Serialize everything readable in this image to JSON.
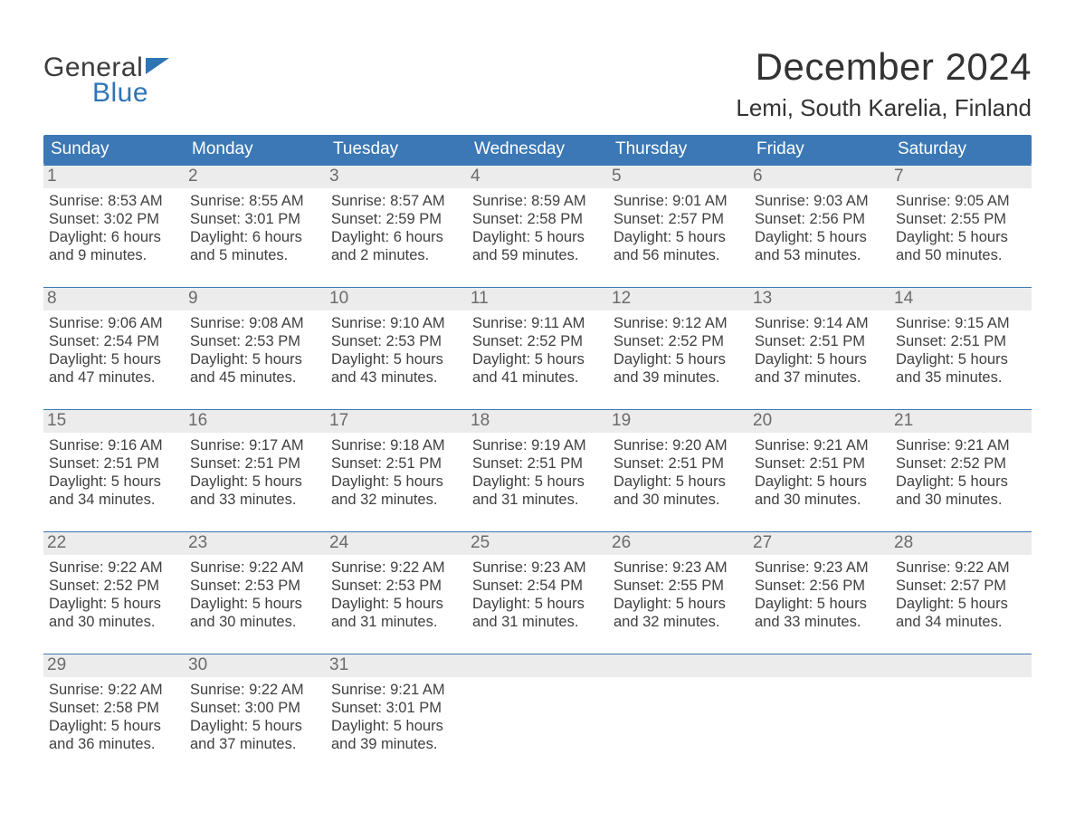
{
  "brand": {
    "word1": "General",
    "word2": "Blue"
  },
  "title": "December 2024",
  "location": "Lemi, South Karelia, Finland",
  "colors": {
    "header_bg": "#3b78b5",
    "header_text": "#ffffff",
    "week_border": "#3b78b5",
    "daynum_bg": "#ececec",
    "daynum_text": "#6b6b6b",
    "body_text": "#404040",
    "logo_blue": "#2e75b6",
    "page_bg": "#ffffff"
  },
  "typography": {
    "title_fontsize": 42,
    "location_fontsize": 26,
    "dow_fontsize": 19,
    "daynum_fontsize": 19,
    "body_fontsize": 16.5,
    "font_family": "Arial"
  },
  "days_of_week": [
    "Sunday",
    "Monday",
    "Tuesday",
    "Wednesday",
    "Thursday",
    "Friday",
    "Saturday"
  ],
  "weeks": [
    [
      {
        "n": "1",
        "sunrise": "Sunrise: 8:53 AM",
        "sunset": "Sunset: 3:02 PM",
        "daylight1": "Daylight: 6 hours",
        "daylight2": "and 9 minutes."
      },
      {
        "n": "2",
        "sunrise": "Sunrise: 8:55 AM",
        "sunset": "Sunset: 3:01 PM",
        "daylight1": "Daylight: 6 hours",
        "daylight2": "and 5 minutes."
      },
      {
        "n": "3",
        "sunrise": "Sunrise: 8:57 AM",
        "sunset": "Sunset: 2:59 PM",
        "daylight1": "Daylight: 6 hours",
        "daylight2": "and 2 minutes."
      },
      {
        "n": "4",
        "sunrise": "Sunrise: 8:59 AM",
        "sunset": "Sunset: 2:58 PM",
        "daylight1": "Daylight: 5 hours",
        "daylight2": "and 59 minutes."
      },
      {
        "n": "5",
        "sunrise": "Sunrise: 9:01 AM",
        "sunset": "Sunset: 2:57 PM",
        "daylight1": "Daylight: 5 hours",
        "daylight2": "and 56 minutes."
      },
      {
        "n": "6",
        "sunrise": "Sunrise: 9:03 AM",
        "sunset": "Sunset: 2:56 PM",
        "daylight1": "Daylight: 5 hours",
        "daylight2": "and 53 minutes."
      },
      {
        "n": "7",
        "sunrise": "Sunrise: 9:05 AM",
        "sunset": "Sunset: 2:55 PM",
        "daylight1": "Daylight: 5 hours",
        "daylight2": "and 50 minutes."
      }
    ],
    [
      {
        "n": "8",
        "sunrise": "Sunrise: 9:06 AM",
        "sunset": "Sunset: 2:54 PM",
        "daylight1": "Daylight: 5 hours",
        "daylight2": "and 47 minutes."
      },
      {
        "n": "9",
        "sunrise": "Sunrise: 9:08 AM",
        "sunset": "Sunset: 2:53 PM",
        "daylight1": "Daylight: 5 hours",
        "daylight2": "and 45 minutes."
      },
      {
        "n": "10",
        "sunrise": "Sunrise: 9:10 AM",
        "sunset": "Sunset: 2:53 PM",
        "daylight1": "Daylight: 5 hours",
        "daylight2": "and 43 minutes."
      },
      {
        "n": "11",
        "sunrise": "Sunrise: 9:11 AM",
        "sunset": "Sunset: 2:52 PM",
        "daylight1": "Daylight: 5 hours",
        "daylight2": "and 41 minutes."
      },
      {
        "n": "12",
        "sunrise": "Sunrise: 9:12 AM",
        "sunset": "Sunset: 2:52 PM",
        "daylight1": "Daylight: 5 hours",
        "daylight2": "and 39 minutes."
      },
      {
        "n": "13",
        "sunrise": "Sunrise: 9:14 AM",
        "sunset": "Sunset: 2:51 PM",
        "daylight1": "Daylight: 5 hours",
        "daylight2": "and 37 minutes."
      },
      {
        "n": "14",
        "sunrise": "Sunrise: 9:15 AM",
        "sunset": "Sunset: 2:51 PM",
        "daylight1": "Daylight: 5 hours",
        "daylight2": "and 35 minutes."
      }
    ],
    [
      {
        "n": "15",
        "sunrise": "Sunrise: 9:16 AM",
        "sunset": "Sunset: 2:51 PM",
        "daylight1": "Daylight: 5 hours",
        "daylight2": "and 34 minutes."
      },
      {
        "n": "16",
        "sunrise": "Sunrise: 9:17 AM",
        "sunset": "Sunset: 2:51 PM",
        "daylight1": "Daylight: 5 hours",
        "daylight2": "and 33 minutes."
      },
      {
        "n": "17",
        "sunrise": "Sunrise: 9:18 AM",
        "sunset": "Sunset: 2:51 PM",
        "daylight1": "Daylight: 5 hours",
        "daylight2": "and 32 minutes."
      },
      {
        "n": "18",
        "sunrise": "Sunrise: 9:19 AM",
        "sunset": "Sunset: 2:51 PM",
        "daylight1": "Daylight: 5 hours",
        "daylight2": "and 31 minutes."
      },
      {
        "n": "19",
        "sunrise": "Sunrise: 9:20 AM",
        "sunset": "Sunset: 2:51 PM",
        "daylight1": "Daylight: 5 hours",
        "daylight2": "and 30 minutes."
      },
      {
        "n": "20",
        "sunrise": "Sunrise: 9:21 AM",
        "sunset": "Sunset: 2:51 PM",
        "daylight1": "Daylight: 5 hours",
        "daylight2": "and 30 minutes."
      },
      {
        "n": "21",
        "sunrise": "Sunrise: 9:21 AM",
        "sunset": "Sunset: 2:52 PM",
        "daylight1": "Daylight: 5 hours",
        "daylight2": "and 30 minutes."
      }
    ],
    [
      {
        "n": "22",
        "sunrise": "Sunrise: 9:22 AM",
        "sunset": "Sunset: 2:52 PM",
        "daylight1": "Daylight: 5 hours",
        "daylight2": "and 30 minutes."
      },
      {
        "n": "23",
        "sunrise": "Sunrise: 9:22 AM",
        "sunset": "Sunset: 2:53 PM",
        "daylight1": "Daylight: 5 hours",
        "daylight2": "and 30 minutes."
      },
      {
        "n": "24",
        "sunrise": "Sunrise: 9:22 AM",
        "sunset": "Sunset: 2:53 PM",
        "daylight1": "Daylight: 5 hours",
        "daylight2": "and 31 minutes."
      },
      {
        "n": "25",
        "sunrise": "Sunrise: 9:23 AM",
        "sunset": "Sunset: 2:54 PM",
        "daylight1": "Daylight: 5 hours",
        "daylight2": "and 31 minutes."
      },
      {
        "n": "26",
        "sunrise": "Sunrise: 9:23 AM",
        "sunset": "Sunset: 2:55 PM",
        "daylight1": "Daylight: 5 hours",
        "daylight2": "and 32 minutes."
      },
      {
        "n": "27",
        "sunrise": "Sunrise: 9:23 AM",
        "sunset": "Sunset: 2:56 PM",
        "daylight1": "Daylight: 5 hours",
        "daylight2": "and 33 minutes."
      },
      {
        "n": "28",
        "sunrise": "Sunrise: 9:22 AM",
        "sunset": "Sunset: 2:57 PM",
        "daylight1": "Daylight: 5 hours",
        "daylight2": "and 34 minutes."
      }
    ],
    [
      {
        "n": "29",
        "sunrise": "Sunrise: 9:22 AM",
        "sunset": "Sunset: 2:58 PM",
        "daylight1": "Daylight: 5 hours",
        "daylight2": "and 36 minutes."
      },
      {
        "n": "30",
        "sunrise": "Sunrise: 9:22 AM",
        "sunset": "Sunset: 3:00 PM",
        "daylight1": "Daylight: 5 hours",
        "daylight2": "and 37 minutes."
      },
      {
        "n": "31",
        "sunrise": "Sunrise: 9:21 AM",
        "sunset": "Sunset: 3:01 PM",
        "daylight1": "Daylight: 5 hours",
        "daylight2": "and 39 minutes."
      },
      {
        "empty": true
      },
      {
        "empty": true
      },
      {
        "empty": true
      },
      {
        "empty": true
      }
    ]
  ]
}
